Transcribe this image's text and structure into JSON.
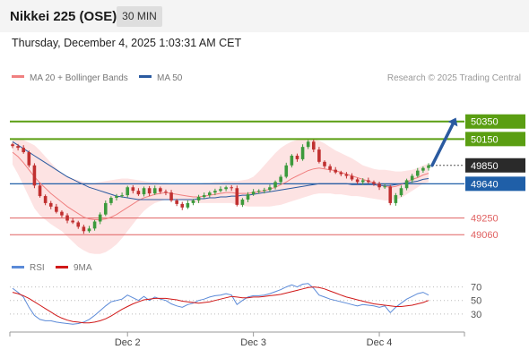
{
  "header": {
    "title": "Nikkei 225 (OSE)",
    "timeframe": "30 MIN"
  },
  "timestamp": "Thursday, December 4, 2025 1:03:31 AM CET",
  "colors": {
    "resistance_green": "#5a9e12",
    "support_blue": "#1f5fa8",
    "support_red": "#e06060",
    "price_badge": "#2a2a2a",
    "arrow": "#2a5aa0",
    "bollinger_fill": "#fde3e3",
    "ma20": "#f08080",
    "ma50": "#2a5aa0",
    "candle_up": "#3c9a3c",
    "candle_down": "#c03030",
    "rsi_line": "#5b8ad8",
    "rsi_ma": "#d01818"
  },
  "legend": {
    "ma20_label": "MA 20 + Bollinger Bands",
    "ma50_label": "MA 50",
    "credit": "Research © 2025 Trading Central"
  },
  "rsi_legend": {
    "rsi_label": "RSI",
    "ma_label": "9MA"
  },
  "chart_data": {
    "type": "candlestick",
    "price_range": [
      48960,
      50480
    ],
    "levels": [
      {
        "value": 50350,
        "label": "50350",
        "kind": "resistance",
        "style": "green-badge"
      },
      {
        "value": 50150,
        "label": "50150",
        "kind": "resistance",
        "style": "green-badge"
      },
      {
        "value": 49850,
        "label": "49850",
        "kind": "current-price",
        "style": "dark-badge"
      },
      {
        "value": 49640,
        "label": "49640",
        "kind": "pivot",
        "style": "blue-badge"
      },
      {
        "value": 49250,
        "label": "49250",
        "kind": "support",
        "style": "red-text"
      },
      {
        "value": 49060,
        "label": "49060",
        "kind": "support",
        "style": "red-text"
      }
    ],
    "close_path": [
      50070,
      50050,
      50000,
      49850,
      49620,
      49500,
      49420,
      49380,
      49320,
      49280,
      49220,
      49200,
      49150,
      49100,
      49130,
      49210,
      49290,
      49420,
      49480,
      49500,
      49510,
      49600,
      49560,
      49520,
      49590,
      49530,
      49590,
      49550,
      49540,
      49450,
      49410,
      49370,
      49420,
      49450,
      49490,
      49510,
      49540,
      49560,
      49580,
      49600,
      49590,
      49400,
      49460,
      49520,
      49550,
      49560,
      49570,
      49600,
      49660,
      49720,
      49850,
      49960,
      49920,
      50060,
      50120,
      50030,
      49890,
      49840,
      49800,
      49770,
      49750,
      49730,
      49690,
      49660,
      49680,
      49660,
      49640,
      49600,
      49610,
      49420,
      49510,
      49590,
      49680,
      49730,
      49790,
      49820,
      49850
    ],
    "bollinger": {
      "ma20": [
        50000,
        49950,
        49880,
        49800,
        49720,
        49650,
        49590,
        49530,
        49480,
        49430,
        49380,
        49340,
        49300,
        49260,
        49240,
        49230,
        49230,
        49240,
        49260,
        49290,
        49330,
        49370,
        49410,
        49450,
        49480,
        49500,
        49520,
        49530,
        49540,
        49530,
        49520,
        49510,
        49500,
        49490,
        49490,
        49500,
        49510,
        49520,
        49530,
        49540,
        49540,
        49530,
        49530,
        49530,
        49540,
        49550,
        49560,
        49580,
        49600,
        49630,
        49660,
        49700,
        49730,
        49760,
        49790,
        49810,
        49820,
        49810,
        49800,
        49790,
        49770,
        49750,
        49730,
        49710,
        49690,
        49670,
        49650,
        49630,
        49610,
        49600,
        49610,
        49630,
        49660,
        49690,
        49710,
        49740,
        49760
      ],
      "upper": [
        50140,
        50150,
        50140,
        50110,
        50080,
        50020,
        49950,
        49880,
        49820,
        49760,
        49720,
        49700,
        49680,
        49660,
        49650,
        49650,
        49660,
        49670,
        49680,
        49690,
        49700,
        49700,
        49690,
        49680,
        49670,
        49660,
        49660,
        49650,
        49650,
        49640,
        49640,
        49640,
        49640,
        49640,
        49640,
        49650,
        49650,
        49660,
        49660,
        49670,
        49670,
        49670,
        49680,
        49690,
        49720,
        49780,
        49850,
        49920,
        49990,
        50050,
        50090,
        50120,
        50140,
        50150,
        50160,
        50150,
        50130,
        50100,
        50060,
        50020,
        49990,
        49960,
        49930,
        49890,
        49850,
        49830,
        49810,
        49800,
        49800,
        49790,
        49780,
        49780,
        49790,
        49800,
        49820,
        49850,
        49870
      ],
      "lower": [
        49860,
        49750,
        49620,
        49490,
        49360,
        49280,
        49230,
        49180,
        49140,
        49100,
        49040,
        48980,
        48920,
        48880,
        48850,
        48840,
        48840,
        48860,
        48900,
        48950,
        49020,
        49100,
        49180,
        49260,
        49330,
        49380,
        49420,
        49440,
        49460,
        49460,
        49460,
        49450,
        49440,
        49430,
        49420,
        49420,
        49420,
        49420,
        49420,
        49420,
        49420,
        49400,
        49390,
        49380,
        49380,
        49380,
        49380,
        49380,
        49390,
        49400,
        49420,
        49440,
        49460,
        49480,
        49500,
        49520,
        49530,
        49530,
        49530,
        49520,
        49520,
        49510,
        49500,
        49500,
        49490,
        49480,
        49470,
        49460,
        49450,
        49450,
        49460,
        49480,
        49520,
        49560,
        49600,
        49640,
        49660
      ]
    },
    "ma50": [
      50120,
      50080,
      50040,
      50000,
      49960,
      49920,
      49880,
      49840,
      49800,
      49760,
      49720,
      49690,
      49660,
      49630,
      49600,
      49580,
      49560,
      49540,
      49520,
      49500,
      49490,
      49480,
      49470,
      49460,
      49460,
      49460,
      49460,
      49460,
      49460,
      49460,
      49460,
      49460,
      49460,
      49460,
      49470,
      49470,
      49480,
      49480,
      49490,
      49490,
      49500,
      49500,
      49510,
      49510,
      49520,
      49530,
      49540,
      49550,
      49560,
      49570,
      49580,
      49590,
      49600,
      49610,
      49620,
      49630,
      49640,
      49640,
      49640,
      49640,
      49640,
      49640,
      49630,
      49630,
      49630,
      49630,
      49630,
      49620,
      49620,
      49620,
      49630,
      49640,
      49650,
      49660,
      49670,
      49690,
      49700
    ],
    "rsi": {
      "levels": [
        70,
        50,
        30
      ],
      "range": [
        10,
        80
      ],
      "rsi": [
        68,
        62,
        55,
        40,
        28,
        22,
        20,
        20,
        18,
        17,
        16,
        15,
        16,
        18,
        22,
        28,
        35,
        42,
        48,
        50,
        52,
        58,
        54,
        50,
        56,
        50,
        55,
        52,
        50,
        45,
        42,
        40,
        44,
        46,
        50,
        52,
        55,
        57,
        58,
        60,
        58,
        44,
        50,
        55,
        57,
        57,
        58,
        60,
        63,
        66,
        70,
        73,
        70,
        74,
        75,
        68,
        58,
        55,
        52,
        50,
        48,
        46,
        44,
        42,
        44,
        43,
        42,
        40,
        42,
        32,
        40,
        46,
        52,
        56,
        60,
        62,
        58
      ],
      "ma9": [
        62,
        60,
        57,
        53,
        48,
        43,
        38,
        33,
        28,
        24,
        21,
        19,
        18,
        17,
        17,
        18,
        20,
        23,
        27,
        32,
        37,
        41,
        45,
        48,
        51,
        52,
        53,
        53,
        53,
        52,
        51,
        49,
        48,
        47,
        46,
        47,
        48,
        50,
        52,
        54,
        56,
        55,
        54,
        54,
        55,
        55,
        56,
        57,
        58,
        59,
        61,
        63,
        65,
        67,
        69,
        70,
        69,
        67,
        64,
        61,
        58,
        55,
        53,
        51,
        49,
        47,
        45,
        44,
        43,
        42,
        41,
        41,
        42,
        43,
        45,
        47,
        50
      ]
    },
    "x_ticks": [
      {
        "label": "Dec 2",
        "index": 21
      },
      {
        "label": "Dec 3",
        "index": 44
      },
      {
        "label": "Dec 4",
        "index": 67
      }
    ]
  }
}
